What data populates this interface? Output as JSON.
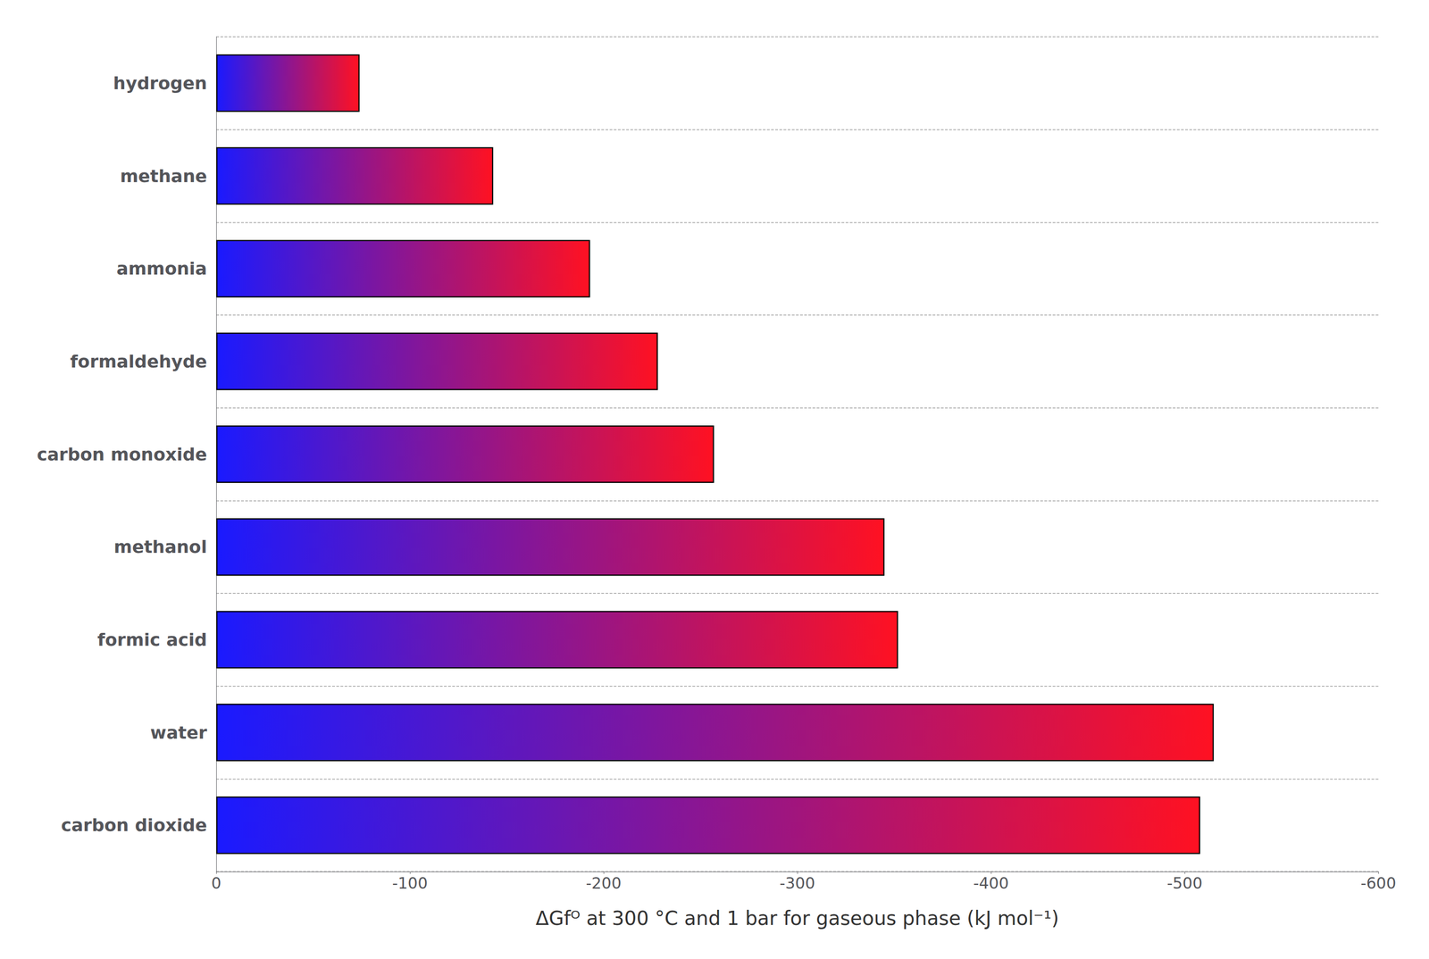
{
  "chart_data": {
    "type": "bar",
    "orientation": "horizontal",
    "categories": [
      "carbon dioxide",
      "water",
      "formic acid",
      "methanol",
      "carbon monoxide",
      "formaldehyde",
      "ammonia",
      "methane",
      "hydrogen"
    ],
    "values": [
      -508,
      -515,
      -352,
      -345,
      -257,
      -228,
      -193,
      -143,
      -74
    ],
    "xlabel": "ΔGfᴼ at 300 °C and 1 bar for gaseous phase (kJ mol⁻¹)",
    "xlim": [
      0,
      -600
    ],
    "xticks": [
      0,
      -100,
      -200,
      -300,
      -400,
      -500,
      -600
    ],
    "color": [
      "#1a1aff",
      "#ff1122"
    ],
    "grid": true
  }
}
